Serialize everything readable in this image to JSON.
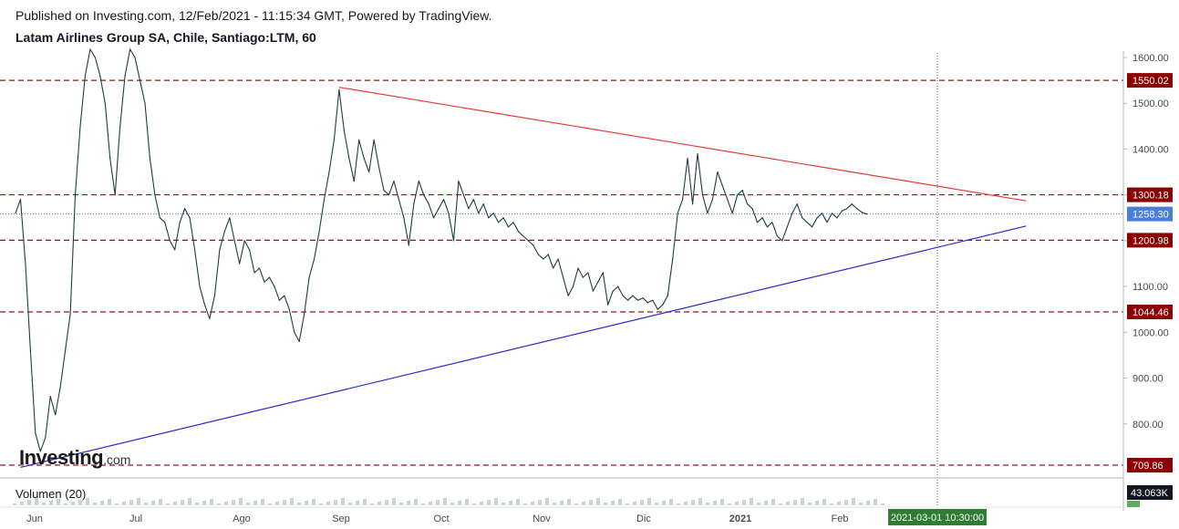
{
  "header": {
    "published": "Published on Investing.com, 12/Feb/2021 - 11:15:34 GMT, Powered by TradingView.",
    "instrument": "Latam Airlines Group SA, Chile, Santiago:LTM, 60"
  },
  "logo": {
    "name": "Investing",
    "suffix": ".com"
  },
  "volume_label": "Volumen (20)",
  "volume_value": "43.063K",
  "crosshair_date_label": "2021-03-01 10:30:00",
  "colors": {
    "price_line": "#1f3d3d",
    "resistance_trendline": "#e83a3a",
    "support_trendline": "#2a2ad0",
    "level_line": "#8b1a1a",
    "level_badge": "#8b0000",
    "current_price_badge": "#4a7fd6",
    "date_badge": "#2e7d32"
  },
  "chart_data": {
    "type": "line",
    "title": "Latam Airlines Group SA, Chile, Santiago:LTM, 60",
    "x_ticks": [
      "Jun",
      "Jul",
      "Ago",
      "Sep",
      "Oct",
      "Nov",
      "Dic",
      "2021",
      "Feb"
    ],
    "y_ticks": [
      "1600.00",
      "1500.00",
      "1400.00",
      "1300.00",
      "1200.00",
      "1100.00",
      "1000.00",
      "900.00",
      "800.00"
    ],
    "ylim": [
      690,
      1610
    ],
    "price_levels": [
      "1550.02",
      "1300.18",
      "1200.98",
      "1044.46",
      "709.86"
    ],
    "current_price": "1258.30",
    "series": [
      {
        "values": [
          [
            0.0,
            1260
          ],
          [
            0.2,
            1290
          ],
          [
            0.4,
            1150
          ],
          [
            0.6,
            960
          ],
          [
            0.8,
            780
          ],
          [
            1.0,
            740
          ],
          [
            1.2,
            770
          ],
          [
            1.4,
            860
          ],
          [
            1.6,
            820
          ],
          [
            1.8,
            880
          ],
          [
            2.0,
            960
          ],
          [
            2.2,
            1040
          ],
          [
            2.4,
            1300
          ],
          [
            2.6,
            1450
          ],
          [
            2.8,
            1560
          ],
          [
            3.0,
            1620
          ],
          [
            3.2,
            1600
          ],
          [
            3.4,
            1560
          ],
          [
            3.6,
            1500
          ],
          [
            3.8,
            1380
          ],
          [
            4.0,
            1300
          ],
          [
            4.2,
            1450
          ],
          [
            4.4,
            1560
          ],
          [
            4.6,
            1620
          ],
          [
            4.8,
            1600
          ],
          [
            5.0,
            1550
          ],
          [
            5.2,
            1500
          ],
          [
            5.4,
            1380
          ],
          [
            5.6,
            1300
          ],
          [
            5.8,
            1250
          ],
          [
            6.0,
            1240
          ],
          [
            6.2,
            1200
          ],
          [
            6.4,
            1180
          ],
          [
            6.6,
            1240
          ],
          [
            6.8,
            1270
          ],
          [
            7.0,
            1250
          ],
          [
            7.2,
            1180
          ],
          [
            7.4,
            1100
          ],
          [
            7.6,
            1060
          ],
          [
            7.8,
            1030
          ],
          [
            8.0,
            1080
          ],
          [
            8.2,
            1180
          ],
          [
            8.4,
            1220
          ],
          [
            8.6,
            1250
          ],
          [
            8.8,
            1200
          ],
          [
            9.0,
            1150
          ],
          [
            9.2,
            1200
          ],
          [
            9.4,
            1180
          ],
          [
            9.6,
            1130
          ],
          [
            9.8,
            1140
          ],
          [
            10.0,
            1110
          ],
          [
            10.2,
            1120
          ],
          [
            10.4,
            1100
          ],
          [
            10.6,
            1070
          ],
          [
            10.8,
            1080
          ],
          [
            11.0,
            1050
          ],
          [
            11.2,
            1000
          ],
          [
            11.4,
            980
          ],
          [
            11.6,
            1040
          ],
          [
            11.8,
            1120
          ],
          [
            12.0,
            1160
          ],
          [
            12.2,
            1220
          ],
          [
            12.4,
            1290
          ],
          [
            12.6,
            1350
          ],
          [
            12.8,
            1420
          ],
          [
            13.0,
            1530
          ],
          [
            13.2,
            1440
          ],
          [
            13.4,
            1380
          ],
          [
            13.6,
            1330
          ],
          [
            13.8,
            1420
          ],
          [
            14.0,
            1380
          ],
          [
            14.2,
            1350
          ],
          [
            14.4,
            1420
          ],
          [
            14.6,
            1360
          ],
          [
            14.8,
            1310
          ],
          [
            15.0,
            1300
          ],
          [
            15.2,
            1330
          ],
          [
            15.4,
            1290
          ],
          [
            15.6,
            1250
          ],
          [
            15.8,
            1190
          ],
          [
            16.0,
            1280
          ],
          [
            16.2,
            1330
          ],
          [
            16.4,
            1300
          ],
          [
            16.6,
            1280
          ],
          [
            16.8,
            1250
          ],
          [
            17.0,
            1270
          ],
          [
            17.2,
            1290
          ],
          [
            17.4,
            1260
          ],
          [
            17.6,
            1200
          ],
          [
            17.8,
            1330
          ],
          [
            18.0,
            1300
          ],
          [
            18.2,
            1270
          ],
          [
            18.4,
            1290
          ],
          [
            18.6,
            1260
          ],
          [
            18.8,
            1280
          ],
          [
            19.0,
            1250
          ],
          [
            19.2,
            1260
          ],
          [
            19.4,
            1240
          ],
          [
            19.6,
            1250
          ],
          [
            19.8,
            1230
          ],
          [
            20.0,
            1240
          ],
          [
            20.2,
            1220
          ],
          [
            20.4,
            1210
          ],
          [
            20.6,
            1200
          ],
          [
            20.8,
            1190
          ],
          [
            21.0,
            1170
          ],
          [
            21.2,
            1160
          ],
          [
            21.4,
            1170
          ],
          [
            21.6,
            1140
          ],
          [
            21.8,
            1160
          ],
          [
            22.0,
            1120
          ],
          [
            22.2,
            1080
          ],
          [
            22.4,
            1100
          ],
          [
            22.6,
            1140
          ],
          [
            22.8,
            1120
          ],
          [
            23.0,
            1130
          ],
          [
            23.2,
            1090
          ],
          [
            23.4,
            1110
          ],
          [
            23.6,
            1130
          ],
          [
            23.8,
            1060
          ],
          [
            24.0,
            1090
          ],
          [
            24.2,
            1100
          ],
          [
            24.4,
            1080
          ],
          [
            24.6,
            1070
          ],
          [
            24.8,
            1080
          ],
          [
            25.0,
            1070
          ],
          [
            25.2,
            1075
          ],
          [
            25.4,
            1065
          ],
          [
            25.6,
            1070
          ],
          [
            25.8,
            1050
          ],
          [
            26.0,
            1060
          ],
          [
            26.2,
            1080
          ],
          [
            26.4,
            1160
          ],
          [
            26.6,
            1260
          ],
          [
            26.8,
            1290
          ],
          [
            27.0,
            1380
          ],
          [
            27.2,
            1280
          ],
          [
            27.4,
            1390
          ],
          [
            27.6,
            1300
          ],
          [
            27.8,
            1260
          ],
          [
            28.0,
            1290
          ],
          [
            28.2,
            1350
          ],
          [
            28.4,
            1320
          ],
          [
            28.6,
            1290
          ],
          [
            28.8,
            1260
          ],
          [
            29.0,
            1300
          ],
          [
            29.2,
            1310
          ],
          [
            29.4,
            1280
          ],
          [
            29.6,
            1270
          ],
          [
            29.8,
            1240
          ],
          [
            30.0,
            1250
          ],
          [
            30.2,
            1230
          ],
          [
            30.4,
            1240
          ],
          [
            30.6,
            1210
          ],
          [
            30.8,
            1200
          ],
          [
            31.0,
            1230
          ],
          [
            31.2,
            1260
          ],
          [
            31.4,
            1280
          ],
          [
            31.6,
            1250
          ],
          [
            31.8,
            1240
          ],
          [
            32.0,
            1230
          ],
          [
            32.2,
            1250
          ],
          [
            32.4,
            1260
          ],
          [
            32.6,
            1240
          ],
          [
            32.8,
            1260
          ],
          [
            33.0,
            1250
          ],
          [
            33.2,
            1265
          ],
          [
            33.4,
            1270
          ],
          [
            33.6,
            1280
          ],
          [
            33.8,
            1270
          ],
          [
            34.0,
            1262
          ],
          [
            34.2,
            1258
          ]
        ]
      }
    ],
    "trendlines": [
      {
        "name": "resistance",
        "from": [
          13.0,
          1535
        ],
        "to": [
          40.6,
          1287
        ]
      },
      {
        "name": "support",
        "from": [
          0.2,
          705
        ],
        "to": [
          40.6,
          1232
        ]
      }
    ],
    "grid": false,
    "legend": "none"
  }
}
